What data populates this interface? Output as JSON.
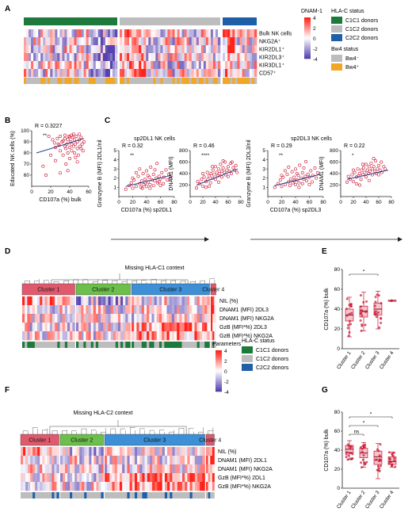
{
  "panels": {
    "A": {
      "letter": "A",
      "row_labels": [
        "Bulk NK cells",
        "NKG2A⁺",
        "KIR2DL1⁺",
        "KIR2DL3⁺",
        "KIR3DL1⁺",
        "CD57⁺"
      ],
      "colorbar_title": "DNAM-1",
      "colorbar_ticks": [
        "4",
        "2",
        "0",
        "-2",
        "-4"
      ],
      "hla_legend_title": "HLA-C status",
      "hla_legend": [
        {
          "label": "C1C1 donors",
          "color": "#1e7a3c"
        },
        {
          "label": "C1C2 donors",
          "color": "#bdbdbd"
        },
        {
          "label": "C2C2 donors",
          "color": "#1f5fa8"
        }
      ],
      "bw4_legend_title": "Bw4 status",
      "bw4_legend": [
        {
          "label": "Bw4⁻",
          "color": "#bdbdbd"
        },
        {
          "label": "Bw4⁺",
          "color": "#f2a626"
        }
      ]
    },
    "B": {
      "letter": "B"
    },
    "C": {
      "letter": "C",
      "sp2dl1_title": "sp2DL1 NK cells",
      "sp2dl3_title": "sp2DL3 NK cells"
    },
    "D": {
      "letter": "D",
      "title": "Missing HLA-C1 context",
      "clusters": [
        "Cluster 1",
        "Cluster 2",
        "Cluster 3",
        "Cluster 4"
      ],
      "rows": [
        "NIL (%)",
        "DNAM1 (MFI) 2DL3",
        "DNAM1 (MFI) NKG2A",
        "GzB (MFI*%) 2DL3",
        "GzB (MFI*%) NKG2A"
      ],
      "colorbar_title": "Parameters",
      "colorbar_ticks": [
        "4",
        "2",
        "0",
        "-2",
        "-4"
      ],
      "hla_legend_title": "HLA-C status",
      "hla_legend": [
        {
          "label": "C1C1 donors",
          "color": "#1e7a3c"
        },
        {
          "label": "C1C2 donors",
          "color": "#bdbdbd"
        },
        {
          "label": "C2C2 donors",
          "color": "#1f5fa8"
        }
      ]
    },
    "E": {
      "letter": "E"
    },
    "F": {
      "letter": "F",
      "title": "Missing HLA-C2 context",
      "clusters": [
        "Cluster 1",
        "Cluster 2",
        "Cluster 3",
        "Cluster 4"
      ],
      "rows": [
        "NIL (%)",
        "DNAM1 (MFI) 2DL1",
        "DNAM1 (MFI) NKG2A",
        "GzB (MFI*%) 2DL1",
        "GzB (MFI*%) NKG2A"
      ]
    },
    "G": {
      "letter": "G"
    }
  },
  "chart_data": [
    {
      "id": "B",
      "type": "scatter",
      "xlabel": "CD107a (%) bulk",
      "ylabel": "Educated NK cells (%)",
      "annotation": "R = 0.3227",
      "significance": "**",
      "xlim": [
        0,
        60
      ],
      "ylim": [
        50,
        100
      ],
      "xticks": [
        0,
        20,
        40,
        60
      ],
      "yticks": [
        60,
        70,
        80,
        90,
        100
      ],
      "trend": [
        [
          5,
          80
        ],
        [
          55,
          93
        ]
      ],
      "points": [
        [
          22,
          92
        ],
        [
          25,
          85
        ],
        [
          28,
          88
        ],
        [
          30,
          95
        ],
        [
          30,
          82
        ],
        [
          32,
          90
        ],
        [
          33,
          78
        ],
        [
          35,
          93
        ],
        [
          35,
          86
        ],
        [
          36,
          70
        ],
        [
          37,
          88
        ],
        [
          38,
          92
        ],
        [
          38,
          80
        ],
        [
          39,
          95
        ],
        [
          40,
          85
        ],
        [
          40,
          75
        ],
        [
          41,
          90
        ],
        [
          42,
          88
        ],
        [
          42,
          82
        ],
        [
          43,
          94
        ],
        [
          44,
          86
        ],
        [
          45,
          92
        ],
        [
          45,
          80
        ],
        [
          46,
          88
        ],
        [
          47,
          95
        ],
        [
          48,
          84
        ],
        [
          48,
          90
        ],
        [
          49,
          78
        ],
        [
          50,
          92
        ],
        [
          51,
          86
        ],
        [
          52,
          94
        ],
        [
          53,
          88
        ],
        [
          54,
          82
        ],
        [
          55,
          90
        ],
        [
          20,
          78
        ],
        [
          18,
          95
        ],
        [
          15,
          60
        ],
        [
          12,
          68
        ],
        [
          25,
          73
        ],
        [
          30,
          62
        ],
        [
          35,
          96
        ],
        [
          44,
          97
        ],
        [
          50,
          97
        ],
        [
          40,
          94
        ],
        [
          36,
          84
        ],
        [
          33,
          91
        ],
        [
          29,
          87
        ],
        [
          27,
          93
        ],
        [
          46,
          76
        ],
        [
          52,
          84
        ],
        [
          38,
          64
        ],
        [
          24,
          89
        ],
        [
          42,
          96
        ],
        [
          48,
          72
        ]
      ]
    },
    {
      "id": "C1",
      "type": "scatter",
      "xlabel": "CD107a (%) sp2DL1",
      "ylabel": "Granzyme B (MFI) 2DL1/nil",
      "annotation": "R = 0.32",
      "significance": "**",
      "xlim": [
        0,
        80
      ],
      "ylim": [
        0,
        5
      ],
      "xticks": [
        0,
        20,
        40,
        60,
        80
      ],
      "yticks": [
        1,
        2,
        3,
        4,
        5
      ],
      "trend": [
        [
          10,
          1.1
        ],
        [
          75,
          2.3
        ]
      ],
      "points": [
        [
          10,
          0.8
        ],
        [
          15,
          1.2
        ],
        [
          18,
          1.5
        ],
        [
          20,
          0.9
        ],
        [
          22,
          1.8
        ],
        [
          25,
          1.1
        ],
        [
          28,
          2.2
        ],
        [
          30,
          1.4
        ],
        [
          32,
          1.0
        ],
        [
          33,
          1.7
        ],
        [
          35,
          2.5
        ],
        [
          36,
          1.3
        ],
        [
          38,
          1.9
        ],
        [
          40,
          1.1
        ],
        [
          40,
          2.8
        ],
        [
          42,
          1.6
        ],
        [
          44,
          2.1
        ],
        [
          45,
          1.3
        ],
        [
          46,
          3.2
        ],
        [
          48,
          1.8
        ],
        [
          50,
          2.4
        ],
        [
          50,
          1.2
        ],
        [
          52,
          1.7
        ],
        [
          54,
          2.0
        ],
        [
          55,
          3.6
        ],
        [
          56,
          1.5
        ],
        [
          58,
          2.2
        ],
        [
          60,
          1.9
        ],
        [
          62,
          2.6
        ],
        [
          64,
          1.4
        ],
        [
          65,
          2.1
        ],
        [
          68,
          2.9
        ],
        [
          70,
          1.8
        ],
        [
          72,
          2.4
        ],
        [
          74,
          2.0
        ],
        [
          30,
          3.0
        ],
        [
          25,
          2.6
        ],
        [
          20,
          2.0
        ],
        [
          45,
          0.9
        ],
        [
          60,
          1.2
        ],
        [
          38,
          1.5
        ],
        [
          42,
          2.3
        ],
        [
          34,
          0.9
        ],
        [
          52,
          2.9
        ],
        [
          58,
          1.6
        ]
      ]
    },
    {
      "id": "C2",
      "type": "scatter",
      "xlabel": "",
      "ylabel": "DNAM1 (MFI)",
      "annotation": "R = 0.46",
      "significance": "****",
      "xlim": [
        0,
        80
      ],
      "ylim": [
        0,
        800
      ],
      "xticks": [
        0,
        20,
        40,
        60,
        80
      ],
      "yticks": [
        200,
        400,
        600,
        800
      ],
      "trend": [
        [
          10,
          200
        ],
        [
          75,
          480
        ]
      ],
      "points": [
        [
          10,
          150
        ],
        [
          12,
          260
        ],
        [
          15,
          220
        ],
        [
          18,
          300
        ],
        [
          20,
          180
        ],
        [
          22,
          340
        ],
        [
          25,
          260
        ],
        [
          27,
          420
        ],
        [
          28,
          300
        ],
        [
          30,
          360
        ],
        [
          32,
          240
        ],
        [
          33,
          400
        ],
        [
          35,
          320
        ],
        [
          36,
          460
        ],
        [
          38,
          380
        ],
        [
          40,
          300
        ],
        [
          40,
          520
        ],
        [
          42,
          420
        ],
        [
          44,
          360
        ],
        [
          45,
          480
        ],
        [
          46,
          400
        ],
        [
          48,
          560
        ],
        [
          50,
          440
        ],
        [
          50,
          340
        ],
        [
          52,
          500
        ],
        [
          54,
          420
        ],
        [
          55,
          600
        ],
        [
          56,
          380
        ],
        [
          58,
          460
        ],
        [
          60,
          520
        ],
        [
          62,
          440
        ],
        [
          64,
          580
        ],
        [
          65,
          400
        ],
        [
          68,
          500
        ],
        [
          70,
          460
        ],
        [
          72,
          540
        ],
        [
          74,
          420
        ],
        [
          30,
          180
        ],
        [
          45,
          250
        ],
        [
          20,
          400
        ],
        [
          60,
          350
        ],
        [
          35,
          520
        ],
        [
          52,
          620
        ],
        [
          25,
          160
        ],
        [
          66,
          600
        ]
      ]
    },
    {
      "id": "C3",
      "type": "scatter",
      "xlabel": "CD107a (%) sp2DL3",
      "ylabel": "Granzyme B (MFI) 2DL3/nil",
      "annotation": "R = 0.29",
      "significance": "**",
      "xlim": [
        0,
        80
      ],
      "ylim": [
        0,
        5
      ],
      "xticks": [
        0,
        20,
        40,
        60,
        80
      ],
      "yticks": [
        1,
        2,
        3,
        4,
        5
      ],
      "trend": [
        [
          10,
          1.2
        ],
        [
          75,
          2.4
        ]
      ],
      "points": [
        [
          10,
          1.0
        ],
        [
          15,
          1.4
        ],
        [
          18,
          1.8
        ],
        [
          20,
          1.1
        ],
        [
          22,
          2.1
        ],
        [
          25,
          1.3
        ],
        [
          28,
          2.4
        ],
        [
          30,
          1.6
        ],
        [
          32,
          1.2
        ],
        [
          33,
          1.9
        ],
        [
          35,
          2.7
        ],
        [
          36,
          1.5
        ],
        [
          38,
          2.1
        ],
        [
          40,
          1.3
        ],
        [
          40,
          3.0
        ],
        [
          42,
          1.8
        ],
        [
          44,
          2.3
        ],
        [
          45,
          1.5
        ],
        [
          46,
          3.4
        ],
        [
          48,
          2.0
        ],
        [
          50,
          2.6
        ],
        [
          50,
          1.4
        ],
        [
          52,
          1.9
        ],
        [
          54,
          2.2
        ],
        [
          55,
          3.8
        ],
        [
          56,
          1.7
        ],
        [
          58,
          2.4
        ],
        [
          60,
          2.1
        ],
        [
          62,
          2.8
        ],
        [
          64,
          1.6
        ],
        [
          65,
          2.3
        ],
        [
          68,
          3.1
        ],
        [
          70,
          2.0
        ],
        [
          72,
          2.6
        ],
        [
          30,
          3.2
        ],
        [
          25,
          2.8
        ],
        [
          45,
          1.0
        ],
        [
          60,
          1.3
        ],
        [
          38,
          1.7
        ],
        [
          42,
          2.5
        ],
        [
          52,
          3.1
        ],
        [
          20,
          2.3
        ]
      ]
    },
    {
      "id": "C4",
      "type": "scatter",
      "xlabel": "",
      "ylabel": "DNAM1 (MFI)",
      "annotation": "R = 0.22",
      "significance": "*",
      "xlim": [
        0,
        80
      ],
      "ylim": [
        0,
        800
      ],
      "xticks": [
        0,
        20,
        40,
        60,
        80
      ],
      "yticks": [
        200,
        400,
        600,
        800
      ],
      "trend": [
        [
          10,
          300
        ],
        [
          75,
          460
        ]
      ],
      "points": [
        [
          10,
          250
        ],
        [
          12,
          350
        ],
        [
          15,
          300
        ],
        [
          18,
          380
        ],
        [
          20,
          260
        ],
        [
          22,
          420
        ],
        [
          25,
          340
        ],
        [
          27,
          480
        ],
        [
          28,
          360
        ],
        [
          30,
          400
        ],
        [
          32,
          300
        ],
        [
          33,
          460
        ],
        [
          35,
          380
        ],
        [
          36,
          500
        ],
        [
          38,
          420
        ],
        [
          40,
          340
        ],
        [
          40,
          560
        ],
        [
          42,
          460
        ],
        [
          44,
          400
        ],
        [
          45,
          520
        ],
        [
          46,
          440
        ],
        [
          48,
          580
        ],
        [
          50,
          480
        ],
        [
          50,
          380
        ],
        [
          52,
          520
        ],
        [
          54,
          440
        ],
        [
          55,
          620
        ],
        [
          56,
          400
        ],
        [
          58,
          480
        ],
        [
          60,
          540
        ],
        [
          62,
          460
        ],
        [
          64,
          600
        ],
        [
          65,
          420
        ],
        [
          68,
          520
        ],
        [
          70,
          480
        ],
        [
          30,
          200
        ],
        [
          45,
          280
        ],
        [
          20,
          460
        ],
        [
          60,
          380
        ],
        [
          35,
          560
        ],
        [
          52,
          660
        ],
        [
          25,
          220
        ]
      ]
    },
    {
      "id": "E",
      "type": "box",
      "ylabel": "CD107a (%) bulk",
      "categories": [
        "Cluster 1",
        "Cluster 2",
        "Cluster 3",
        "Cluster 4"
      ],
      "ylim": [
        0,
        80
      ],
      "yticks": [
        0,
        20,
        40,
        60,
        80
      ],
      "boxes": [
        {
          "min": 12,
          "q1": 28,
          "median": 34,
          "q3": 40,
          "max": 52
        },
        {
          "min": 18,
          "q1": 32,
          "median": 38,
          "q3": 43,
          "max": 57
        },
        {
          "min": 20,
          "q1": 34,
          "median": 40,
          "q3": 46,
          "max": 58
        },
        {
          "min": 48,
          "q1": 48,
          "median": 48,
          "q3": 49,
          "max": 49
        }
      ],
      "significance": [
        {
          "from": "Cluster 1",
          "to": "Cluster 3",
          "label": "*"
        }
      ]
    },
    {
      "id": "G",
      "type": "box",
      "ylabel": "CD107a (%) bulk",
      "categories": [
        "Cluster 1",
        "Cluster 2",
        "Cluster 3",
        "Cluster 4"
      ],
      "ylim": [
        0,
        80
      ],
      "yticks": [
        0,
        20,
        40,
        60,
        80
      ],
      "boxes": [
        {
          "min": 30,
          "q1": 37,
          "median": 41,
          "q3": 45,
          "max": 50
        },
        {
          "min": 22,
          "q1": 32,
          "median": 37,
          "q3": 42,
          "max": 48
        },
        {
          "min": 10,
          "q1": 25,
          "median": 33,
          "q3": 39,
          "max": 47
        },
        {
          "min": 22,
          "q1": 25,
          "median": 28,
          "q3": 33,
          "max": 38
        }
      ],
      "significance": [
        {
          "from": "Cluster 1",
          "to": "Cluster 2",
          "label": "ns"
        },
        {
          "from": "Cluster 1",
          "to": "Cluster 3",
          "label": "*"
        },
        {
          "from": "Cluster 1",
          "to": "Cluster 4",
          "label": "*"
        }
      ]
    }
  ]
}
